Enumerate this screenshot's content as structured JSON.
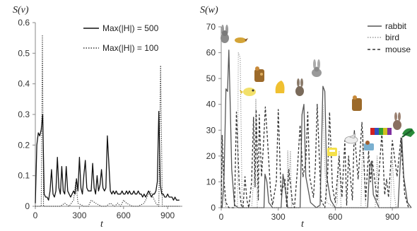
{
  "chart_data": [
    {
      "type": "line",
      "ylabel": "S(v)",
      "xlabel": "t",
      "xlim": [
        0,
        1000
      ],
      "ylim": [
        0,
        0.6
      ],
      "xticks": [
        "0",
        "300",
        "600",
        "900"
      ],
      "xtick_values": [
        0,
        300,
        600,
        900
      ],
      "yticks": [
        "0",
        "0.1",
        "0.2",
        "0.3",
        "0.4",
        "0.5",
        "0.6"
      ],
      "ytick_values": [
        0,
        0.1,
        0.2,
        0.3,
        0.4,
        0.5,
        0.6
      ],
      "grid": false,
      "legend_position": "top-right",
      "series": [
        {
          "name": "Max(|H|) = 500",
          "style": "solid",
          "x": [
            0,
            10,
            20,
            30,
            40,
            50,
            60,
            70,
            80,
            90,
            100,
            110,
            120,
            130,
            140,
            150,
            160,
            170,
            180,
            190,
            200,
            210,
            220,
            230,
            240,
            250,
            260,
            270,
            280,
            290,
            300,
            310,
            320,
            330,
            340,
            350,
            360,
            370,
            380,
            390,
            400,
            410,
            420,
            430,
            440,
            450,
            460,
            470,
            480,
            490,
            500,
            510,
            520,
            530,
            540,
            550,
            560,
            570,
            580,
            590,
            600,
            610,
            620,
            630,
            640,
            650,
            660,
            670,
            680,
            690,
            700,
            710,
            720,
            730,
            740,
            750,
            760,
            770,
            780,
            790,
            800,
            810,
            820,
            830,
            840,
            850,
            860,
            870,
            880,
            890,
            900,
            910,
            920,
            930,
            940,
            950,
            960,
            970,
            980
          ],
          "y": [
            0.01,
            0.2,
            0.24,
            0.23,
            0.25,
            0.3,
            0.04,
            0.03,
            0.03,
            0.02,
            0.05,
            0.12,
            0.04,
            0.03,
            0.05,
            0.16,
            0.06,
            0.04,
            0.13,
            0.05,
            0.04,
            0.13,
            0.05,
            0.04,
            0.03,
            0.04,
            0.05,
            0.04,
            0.09,
            0.05,
            0.16,
            0.06,
            0.04,
            0.1,
            0.15,
            0.06,
            0.05,
            0.05,
            0.05,
            0.14,
            0.06,
            0.04,
            0.1,
            0.05,
            0.07,
            0.12,
            0.06,
            0.05,
            0.06,
            0.23,
            0.14,
            0.05,
            0.04,
            0.05,
            0.04,
            0.05,
            0.04,
            0.04,
            0.04,
            0.05,
            0.04,
            0.04,
            0.05,
            0.04,
            0.05,
            0.04,
            0.04,
            0.05,
            0.04,
            0.04,
            0.05,
            0.04,
            0.04,
            0.03,
            0.04,
            0.03,
            0.04,
            0.05,
            0.04,
            0.03,
            0.04,
            0.04,
            0.05,
            0.08,
            0.31,
            0.07,
            0.04,
            0.04,
            0.03,
            0.03,
            0.04,
            0.03,
            0.03,
            0.03,
            0.02,
            0.03,
            0.02,
            0.02,
            0.02
          ]
        },
        {
          "name": "Max(|H|) = 100",
          "style": "dotted",
          "x": [
            0,
            40,
            48,
            56,
            70,
            100,
            140,
            170,
            200,
            230,
            260,
            275,
            290,
            330,
            360,
            380,
            410,
            450,
            480,
            510,
            540,
            560,
            580,
            600,
            620,
            660,
            700,
            740,
            780,
            820,
            840,
            852,
            864,
            900,
            960,
            980
          ],
          "y": [
            0,
            0,
            0.56,
            0,
            0,
            0,
            0,
            0,
            0.01,
            0,
            0.02,
            0.08,
            0.01,
            0,
            0,
            0.02,
            0.01,
            0,
            0,
            0.01,
            0,
            0.01,
            0,
            0.02,
            0.01,
            0,
            0,
            0.01,
            0.05,
            0.01,
            0,
            0.46,
            0,
            0,
            0,
            0
          ]
        }
      ]
    },
    {
      "type": "line",
      "ylabel": "S(w)",
      "xlabel": "t",
      "xlim": [
        0,
        1000
      ],
      "ylim": [
        0,
        70
      ],
      "xticks": [
        "0",
        "300",
        "600",
        "900"
      ],
      "xtick_values": [
        0,
        300,
        600,
        900
      ],
      "yticks": [
        "0",
        "10",
        "20",
        "30",
        "40",
        "50",
        "60",
        "70"
      ],
      "ytick_values": [
        0,
        10,
        20,
        30,
        40,
        50,
        60,
        70
      ],
      "grid": false,
      "legend_position": "top-right",
      "series": [
        {
          "name": "rabbit",
          "style": "solid",
          "x": [
            0,
            5,
            15,
            25,
            33,
            40,
            48,
            55,
            70,
            90,
            110,
            225,
            230,
            240,
            250,
            270,
            290,
            315,
            325,
            335,
            350,
            415,
            425,
            435,
            445,
            470,
            500,
            520,
            535,
            545,
            555,
            575,
            600,
            770,
            780,
            790,
            800,
            830,
            930,
            940,
            950,
            960,
            980,
            1000
          ],
          "y": [
            0,
            0,
            12,
            46,
            45,
            61,
            38,
            15,
            1,
            0,
            0,
            0,
            13,
            10,
            2,
            0,
            0,
            0,
            13,
            8,
            0,
            0,
            36,
            40,
            12,
            2,
            0,
            1,
            47,
            45,
            12,
            3,
            0,
            0,
            15,
            18,
            5,
            0,
            0,
            15,
            27,
            12,
            2,
            0
          ]
        },
        {
          "name": "bird",
          "style": "dotted",
          "x": [
            0,
            5,
            15,
            25,
            70,
            85,
            90,
            100,
            110,
            160,
            175,
            182,
            190,
            300,
            345,
            350,
            357,
            364,
            370,
            440,
            520,
            535,
            545,
            555,
            600,
            610,
            620,
            630,
            700,
            735,
            745,
            755,
            760,
            810,
            820,
            830,
            890,
            900,
            910,
            920,
            1000
          ],
          "y": [
            0,
            20,
            5,
            0,
            0,
            0,
            60,
            58,
            0,
            0,
            15,
            42,
            0,
            0,
            0,
            22,
            10,
            22,
            0,
            0,
            0,
            40,
            15,
            2,
            0,
            2,
            22,
            0,
            0,
            0,
            30,
            10,
            0,
            0,
            20,
            0,
            0,
            20,
            5,
            0,
            0
          ]
        },
        {
          "name": "mouse",
          "style": "dashed",
          "x": [
            0,
            5,
            15,
            25,
            40,
            70,
            80,
            95,
            105,
            115,
            125,
            135,
            145,
            160,
            170,
            178,
            184,
            195,
            200,
            212,
            222,
            232,
            242,
            260,
            270,
            290,
            300,
            315,
            335,
            345,
            355,
            375,
            385,
            400,
            415,
            430,
            445,
            455,
            465,
            485,
            495,
            505,
            525,
            545,
            560,
            570,
            585,
            600,
            620,
            635,
            650,
            660,
            670,
            690,
            700,
            720,
            740,
            760,
            775,
            785,
            795,
            820,
            845,
            860,
            870,
            880,
            900,
            925,
            945,
            965,
            985
          ],
          "y": [
            0,
            28,
            10,
            2,
            0,
            0,
            37,
            8,
            1,
            0,
            12,
            3,
            0,
            10,
            35,
            8,
            38,
            3,
            36,
            12,
            24,
            39,
            28,
            6,
            1,
            10,
            38,
            5,
            11,
            0,
            15,
            2,
            0,
            14,
            32,
            12,
            18,
            37,
            12,
            4,
            16,
            40,
            3,
            0,
            13,
            37,
            8,
            2,
            20,
            4,
            26,
            1,
            20,
            3,
            30,
            11,
            33,
            3,
            22,
            10,
            18,
            3,
            29,
            5,
            11,
            4,
            26,
            12,
            27,
            5,
            0
          ]
        }
      ]
    }
  ],
  "colors": {
    "solid": "#111111",
    "bird": "#888888",
    "mouse": "#333333",
    "axis": "#888888"
  },
  "icons": [
    "rabbit-icon",
    "bird-icon",
    "mouse-icon",
    "flag-icon",
    "puzzle-icon"
  ]
}
